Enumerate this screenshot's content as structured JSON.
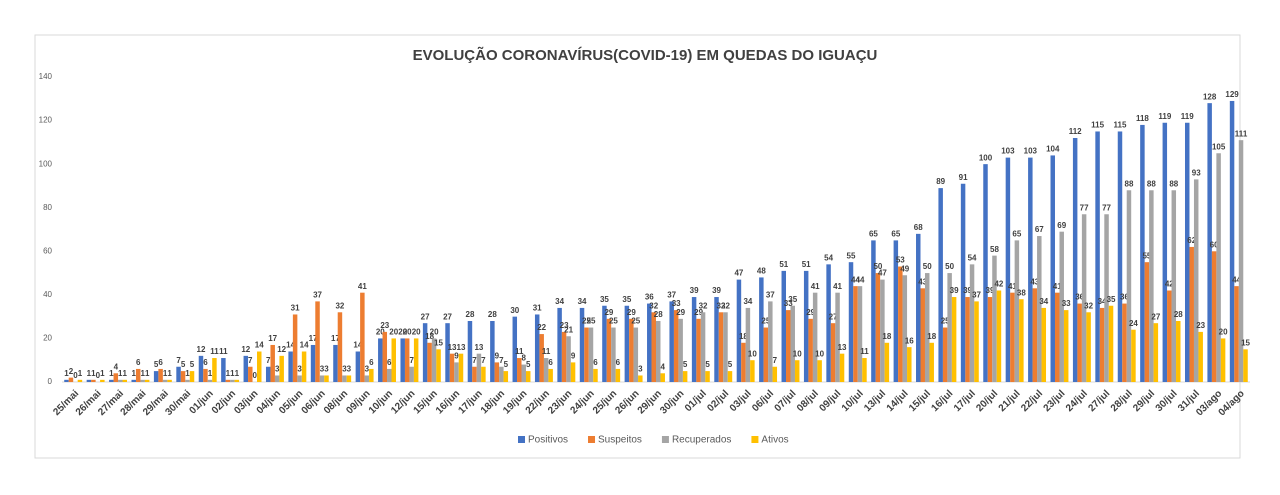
{
  "chart_data": {
    "type": "bar",
    "title": "EVOLUÇÃO CORONAVÍRUS(COVID-19) EM QUEDAS DO IGUAÇU",
    "categories": [
      "25/mai",
      "26/mai",
      "27/mai",
      "28/mai",
      "29/mai",
      "30/mai",
      "01/jun",
      "02/jun",
      "03/jun",
      "04/jun",
      "05/jun",
      "06/jun",
      "08/jun",
      "09/jun",
      "10/jun",
      "12/jun",
      "15/jun",
      "16/jun",
      "17/jun",
      "18/jun",
      "19/jun",
      "22/jun",
      "23/jun",
      "24/jun",
      "25/jun",
      "26/jun",
      "29/jun",
      "30/jun",
      "01/jul",
      "02/jul",
      "03/jul",
      "06/jul",
      "07/jul",
      "08/jul",
      "09/jul",
      "10/jul",
      "13/jul",
      "14/jul",
      "15/jul",
      "16/jul",
      "17/jul",
      "20/jul",
      "21/jul",
      "22/jul",
      "23/jul",
      "24/jul",
      "27/jul",
      "28/jul",
      "29/jul",
      "30/jul",
      "31/jul",
      "03/ago",
      "04/ago"
    ],
    "series": [
      {
        "name": "Positivos",
        "color": "#4472c4",
        "values": [
          1,
          1,
          1,
          1,
          5,
          7,
          12,
          11,
          12,
          7,
          14,
          17,
          17,
          14,
          20,
          20,
          27,
          27,
          28,
          28,
          30,
          31,
          34,
          34,
          35,
          35,
          36,
          37,
          39,
          39,
          47,
          48,
          51,
          51,
          54,
          55,
          65,
          65,
          68,
          89,
          91,
          100,
          103,
          103,
          104,
          112,
          115,
          115,
          118,
          119,
          119,
          128,
          129
        ]
      },
      {
        "name": "Suspeitos",
        "color": "#ed7d31",
        "values": [
          2,
          1,
          4,
          6,
          6,
          5,
          6,
          1,
          7,
          17,
          31,
          37,
          32,
          41,
          23,
          20,
          18,
          13,
          7,
          9,
          11,
          22,
          23,
          25,
          29,
          29,
          32,
          33,
          29,
          32,
          18,
          25,
          33,
          29,
          27,
          44,
          50,
          53,
          43,
          25,
          39,
          39,
          41,
          43,
          41,
          36,
          34,
          36,
          55,
          42,
          62,
          60,
          44
        ]
      },
      {
        "name": "Recuperados",
        "color": "#a5a5a5",
        "values": [
          0,
          0,
          1,
          1,
          1,
          1,
          1,
          1,
          0,
          3,
          3,
          3,
          3,
          3,
          6,
          7,
          20,
          9,
          13,
          7,
          8,
          11,
          21,
          25,
          25,
          25,
          28,
          29,
          32,
          32,
          34,
          37,
          35,
          41,
          41,
          44,
          47,
          49,
          50,
          50,
          54,
          58,
          65,
          67,
          69,
          77,
          77,
          88,
          88,
          88,
          93,
          105,
          111
        ]
      },
      {
        "name": "Ativos",
        "color": "#ffc000",
        "values": [
          1,
          1,
          1,
          1,
          1,
          5,
          11,
          1,
          14,
          12,
          14,
          3,
          3,
          6,
          20,
          20,
          15,
          13,
          7,
          5,
          5,
          6,
          9,
          6,
          6,
          3,
          4,
          5,
          5,
          5,
          10,
          7,
          10,
          10,
          13,
          11,
          18,
          16,
          18,
          39,
          37,
          42,
          38,
          34,
          33,
          32,
          35,
          24,
          27,
          28,
          23,
          20,
          15
        ]
      }
    ],
    "ylim": [
      0,
      140
    ],
    "yticks": [
      0,
      20,
      40,
      60,
      80,
      100,
      120,
      140
    ],
    "legend": "bottom"
  }
}
